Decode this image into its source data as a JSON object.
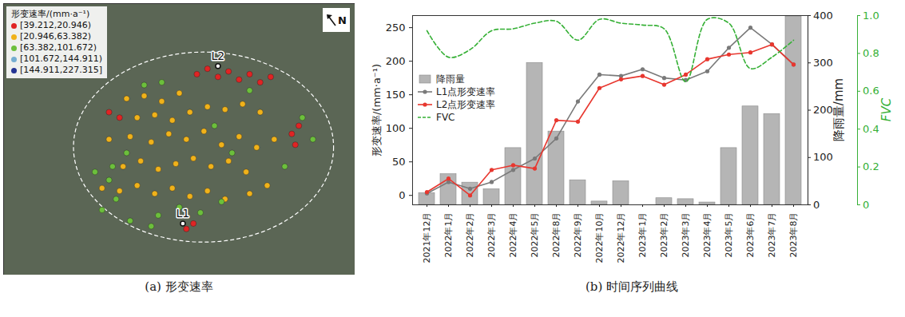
{
  "chart_data": [
    {
      "type": "scatter",
      "caption": "(a) 形变速率",
      "legend_title": "形变速率/(mm·a⁻¹)",
      "legend": "upper left",
      "tick_labels": false,
      "xlim": [
        0,
        100
      ],
      "ylim": [
        0,
        100
      ],
      "marker": "circle",
      "north_label": "N",
      "annotations": [
        {
          "text": "L1",
          "x": 51,
          "y": 19
        },
        {
          "text": "L2",
          "x": 61,
          "y": 77
        }
      ],
      "series": [
        {
          "name": "[39.212,20.946)",
          "color": "#e02424",
          "x": [
            55,
            58,
            61,
            64,
            67,
            70,
            73,
            76,
            82,
            83,
            84,
            52,
            54,
            30,
            33
          ],
          "y": [
            74,
            76,
            73,
            75,
            72,
            74,
            71,
            73,
            52,
            48,
            55,
            17,
            19,
            60,
            58
          ]
        },
        {
          "name": "[20.946,63.382)",
          "color": "#f0b21a",
          "x": [
            35,
            40,
            45,
            50,
            38,
            43,
            48,
            53,
            58,
            63,
            68,
            73,
            30,
            36,
            42,
            47,
            52,
            57,
            62,
            67,
            72,
            77,
            34,
            39,
            44,
            49,
            54,
            59,
            64,
            69,
            28,
            33,
            38,
            43,
            48,
            53,
            58,
            63,
            70,
            75
          ],
          "y": [
            65,
            66,
            64,
            67,
            58,
            59,
            57,
            60,
            62,
            61,
            63,
            60,
            50,
            51,
            49,
            52,
            50,
            53,
            48,
            51,
            47,
            50,
            40,
            42,
            39,
            41,
            43,
            40,
            42,
            38,
            32,
            31,
            33,
            30,
            32,
            29,
            31,
            28,
            30,
            33
          ]
        },
        {
          "name": "[63.382,101.672)",
          "color": "#6cbf3c",
          "x": [
            30,
            32,
            35,
            28,
            31,
            40,
            45,
            60,
            65,
            80,
            85,
            88,
            44,
            50,
            56,
            62,
            36,
            42,
            26,
            70
          ],
          "y": [
            35,
            28,
            45,
            24,
            40,
            70,
            71,
            55,
            45,
            40,
            58,
            50,
            22,
            25,
            23,
            27,
            20,
            18,
            38,
            68
          ]
        },
        {
          "name": "[101.672,144.911)",
          "color": "#74add1",
          "x": [],
          "y": []
        },
        {
          "name": "[144.911,227.315]",
          "color": "#253494",
          "x": [],
          "y": []
        }
      ]
    },
    {
      "type": "combo",
      "caption": "(b) 时间序列曲线",
      "legend": "upper left",
      "ylabel": "形变速率/(mm·a⁻¹)",
      "y2label": "降雨量/mm",
      "y3label": "FVC",
      "categories": [
        "2021年12月",
        "2022年1月",
        "2022年2月",
        "2022年3月",
        "2022年4月",
        "2022年5月",
        "2022年8月",
        "2022年9月",
        "2022年10月",
        "2022年12月",
        "2023年1月",
        "2023年2月",
        "2023年3月",
        "2023年4月",
        "2023年5月",
        "2023年6月",
        "2023年7月",
        "2023年8月"
      ],
      "ylim": [
        -14,
        268
      ],
      "yticks": [
        0,
        50,
        100,
        150,
        200,
        250
      ],
      "y2lim": [
        0,
        400
      ],
      "y2ticks": [
        0,
        100,
        200,
        300,
        400
      ],
      "y3lim": [
        0,
        1
      ],
      "y3ticks": [
        0,
        0.2,
        0.4,
        0.6,
        0.8,
        {
          "value": 1,
          "label": "1.0"
        }
      ],
      "series": [
        {
          "name": "降雨量",
          "type": "bar",
          "axis": "y2",
          "color": "#b5b5b5",
          "values": [
            25,
            65,
            47,
            33,
            120,
            300,
            155,
            52,
            7,
            50,
            0,
            14,
            12,
            5,
            120,
            208,
            192,
            398
          ]
        },
        {
          "name": "L1点形变速率",
          "type": "line",
          "color": "#7a7a7a",
          "marker": "circle",
          "values": [
            3,
            20,
            10,
            20,
            38,
            55,
            85,
            140,
            180,
            178,
            188,
            175,
            172,
            185,
            220,
            250,
            225,
            195
          ]
        },
        {
          "name": "L2点形变速率",
          "type": "line",
          "color": "#e8372f",
          "marker": "circle",
          "values": [
            5,
            25,
            0,
            38,
            45,
            40,
            112,
            110,
            160,
            173,
            178,
            165,
            180,
            203,
            210,
            213,
            225,
            195
          ]
        },
        {
          "name": "FVC",
          "type": "line",
          "axis": "y3",
          "color": "#35b035",
          "line_style": "dashed",
          "values": [
            0.92,
            0.78,
            0.82,
            0.92,
            0.93,
            0.96,
            0.97,
            0.87,
            0.98,
            0.96,
            0.95,
            0.93,
            0.65,
            0.98,
            0.96,
            0.72,
            0.78,
            0.87
          ]
        }
      ]
    }
  ]
}
